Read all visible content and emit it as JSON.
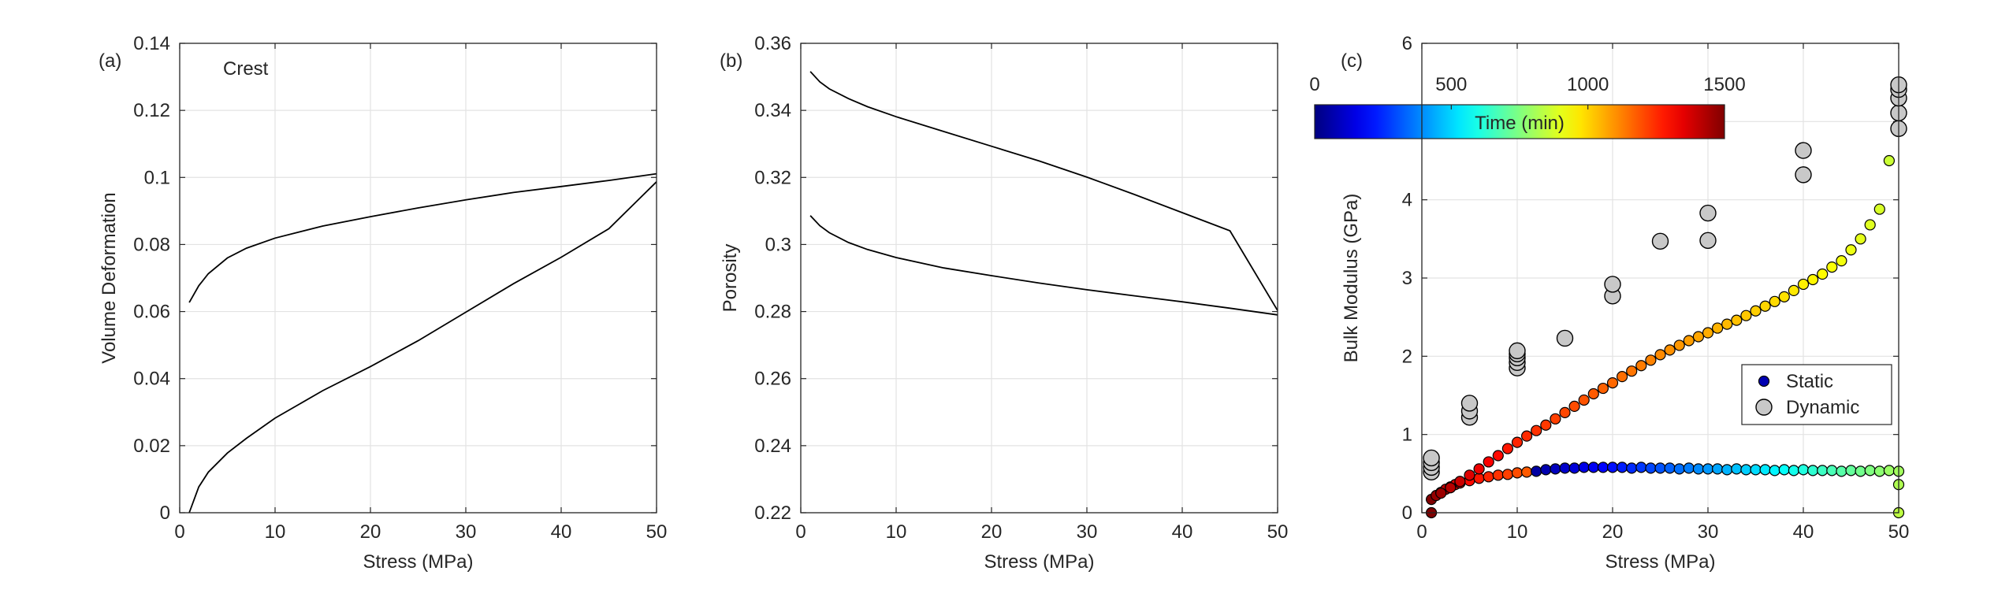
{
  "panels": {
    "a": {
      "label": "(a)",
      "annotation": "Crest"
    },
    "b": {
      "label": "(b)"
    },
    "c": {
      "label": "(c)"
    }
  },
  "colorbar": {
    "title": "Time (min)",
    "ticks": [
      "0",
      "500",
      "1000",
      "1500"
    ],
    "range": [
      0,
      1500
    ],
    "colormap": "jet"
  },
  "legend": {
    "static_label": "Static",
    "dynamic_label": "Dynamic",
    "placement": "lower-right"
  },
  "chart_data": [
    {
      "id": "a",
      "type": "line",
      "title": "",
      "xlabel": "Stress (MPa)",
      "ylabel": "Volume Deformation",
      "xlim": [
        0,
        50
      ],
      "ylim": [
        0,
        0.14
      ],
      "xticks": [
        0,
        10,
        20,
        30,
        40,
        50
      ],
      "yticks": [
        0,
        0.02,
        0.04,
        0.06,
        0.08,
        0.1,
        0.12,
        0.14
      ],
      "ytick_labels": [
        "0",
        "0.02",
        "0.04",
        "0.06",
        "0.08",
        "0.1",
        "0.12",
        "0.14"
      ],
      "grid": true,
      "series": [
        {
          "x": [
            1,
            2,
            3,
            5,
            7,
            10,
            15,
            20,
            25,
            30,
            35,
            40,
            45,
            50
          ],
          "y": [
            0,
            0.0077,
            0.0121,
            0.0178,
            0.0222,
            0.0282,
            0.0364,
            0.0436,
            0.0513,
            0.0598,
            0.0683,
            0.0762,
            0.0847,
            0.0987
          ]
        },
        {
          "x": [
            1,
            2,
            3,
            5,
            7,
            10,
            15,
            20,
            25,
            30,
            35,
            40,
            45,
            50
          ],
          "y": [
            0.0627,
            0.0677,
            0.0713,
            0.076,
            0.0789,
            0.0819,
            0.0855,
            0.0883,
            0.0909,
            0.0933,
            0.0955,
            0.0973,
            0.0991,
            0.1011
          ]
        }
      ]
    },
    {
      "id": "b",
      "type": "line",
      "title": "",
      "xlabel": "Stress (MPa)",
      "ylabel": "Porosity",
      "xlim": [
        0,
        50
      ],
      "ylim": [
        0.22,
        0.36
      ],
      "xticks": [
        0,
        10,
        20,
        30,
        40,
        50
      ],
      "yticks": [
        0.22,
        0.24,
        0.26,
        0.28,
        0.3,
        0.32,
        0.34,
        0.36
      ],
      "ytick_labels": [
        "0.22",
        "0.24",
        "0.26",
        "0.28",
        "0.3",
        "0.32",
        "0.34",
        "0.36"
      ],
      "grid": true,
      "series": [
        {
          "x": [
            1,
            2,
            3,
            5,
            7,
            10,
            15,
            20,
            25,
            30,
            35,
            40,
            45,
            50
          ],
          "y": [
            0.3516,
            0.3485,
            0.3464,
            0.3435,
            0.3411,
            0.3381,
            0.3337,
            0.3293,
            0.3249,
            0.3201,
            0.3149,
            0.3095,
            0.3041,
            0.2803
          ]
        },
        {
          "x": [
            1,
            2,
            3,
            5,
            7,
            10,
            15,
            20,
            25,
            30,
            35,
            40,
            45,
            50
          ],
          "y": [
            0.3086,
            0.3056,
            0.3035,
            0.3006,
            0.2985,
            0.2961,
            0.293,
            0.2907,
            0.2885,
            0.2865,
            0.2847,
            0.2829,
            0.281,
            0.279
          ]
        }
      ]
    },
    {
      "id": "c",
      "type": "scatter",
      "title": "",
      "xlabel": "Stress (MPa)",
      "ylabel": "Bulk Modulus (GPa)",
      "xlim": [
        0,
        50
      ],
      "ylim": [
        0,
        6
      ],
      "xticks": [
        0,
        10,
        20,
        30,
        40,
        50
      ],
      "yticks": [
        0,
        1,
        2,
        3,
        4,
        5,
        6
      ],
      "ytick_labels": [
        "0",
        "1",
        "2",
        "3",
        "4",
        "",
        "6"
      ],
      "grid": true,
      "series": [
        {
          "name": "Static",
          "color_by": "time_min",
          "x": [
            1,
            1.5,
            2,
            2.5,
            3,
            3.5,
            4,
            5,
            6,
            7,
            8,
            9,
            10,
            11,
            12,
            13,
            14,
            15,
            16,
            17,
            18,
            19,
            20,
            21,
            22,
            23,
            24,
            25,
            26,
            27,
            28,
            29,
            30,
            31,
            32,
            33,
            34,
            35,
            36,
            37,
            38,
            39,
            40,
            41,
            42,
            43,
            44,
            45,
            46,
            47,
            48,
            49,
            50,
            50,
            50
          ],
          "y": [
            0.17,
            0.22,
            0.26,
            0.3,
            0.33,
            0.36,
            0.38,
            0.41,
            0.44,
            0.46,
            0.48,
            0.49,
            0.51,
            0.52,
            0.53,
            0.55,
            0.56,
            0.57,
            0.57,
            0.58,
            0.58,
            0.58,
            0.58,
            0.58,
            0.57,
            0.58,
            0.57,
            0.57,
            0.57,
            0.56,
            0.57,
            0.56,
            0.56,
            0.56,
            0.55,
            0.56,
            0.55,
            0.55,
            0.55,
            0.54,
            0.55,
            0.54,
            0.55,
            0.54,
            0.54,
            0.54,
            0.53,
            0.54,
            0.53,
            0.54,
            0.53,
            0.54,
            0.53,
            0.36,
            0.0
          ],
          "time_min": [
            1500,
            1470,
            1440,
            1410,
            1380,
            1350,
            1330,
            1300,
            1280,
            1260,
            1240,
            1220,
            1200,
            1180,
            50,
            70,
            90,
            110,
            130,
            150,
            170,
            190,
            210,
            230,
            250,
            270,
            290,
            310,
            330,
            350,
            370,
            390,
            410,
            430,
            450,
            470,
            490,
            510,
            530,
            550,
            570,
            590,
            610,
            630,
            650,
            670,
            690,
            710,
            730,
            750,
            770,
            790,
            800,
            820,
            840
          ]
        },
        {
          "name": "",
          "color_by": "time_min",
          "x": [
            1,
            2,
            3,
            4,
            5,
            6,
            7,
            8,
            9,
            10,
            11,
            12,
            13,
            14,
            15,
            16,
            17,
            18,
            19,
            20,
            21,
            22,
            23,
            24,
            25,
            26,
            27,
            28,
            29,
            30,
            31,
            32,
            33,
            34,
            35,
            36,
            37,
            38,
            39,
            40,
            41,
            42,
            43,
            44,
            45,
            46,
            47,
            48,
            49
          ],
          "y": [
            0.0,
            0.25,
            0.32,
            0.4,
            0.48,
            0.56,
            0.65,
            0.73,
            0.82,
            0.9,
            0.98,
            1.05,
            1.12,
            1.2,
            1.28,
            1.36,
            1.44,
            1.52,
            1.59,
            1.66,
            1.74,
            1.81,
            1.88,
            1.95,
            2.02,
            2.08,
            2.14,
            2.2,
            2.25,
            2.3,
            2.36,
            2.41,
            2.46,
            2.52,
            2.58,
            2.64,
            2.7,
            2.76,
            2.84,
            2.92,
            2.98,
            3.05,
            3.14,
            3.22,
            3.36,
            3.5,
            3.68,
            3.88,
            4.5
          ],
          "time_min": [
            1500,
            1460,
            1420,
            1390,
            1360,
            1340,
            1320,
            1300,
            1280,
            1260,
            1250,
            1240,
            1230,
            1220,
            1210,
            1200,
            1190,
            1180,
            1170,
            1160,
            1150,
            1140,
            1130,
            1120,
            1110,
            1100,
            1090,
            1080,
            1070,
            1060,
            1050,
            1040,
            1030,
            1020,
            1010,
            1000,
            990,
            980,
            970,
            960,
            950,
            940,
            930,
            920,
            910,
            900,
            890,
            880,
            860
          ]
        },
        {
          "name": "Dynamic",
          "color": "#c8c8c8",
          "x": [
            1,
            1,
            1,
            1,
            5,
            5,
            5,
            10,
            10,
            10,
            10,
            10,
            15,
            20,
            20,
            25,
            30,
            30,
            40,
            40,
            50,
            50,
            50,
            50,
            50
          ],
          "y": [
            0.52,
            0.58,
            0.64,
            0.7,
            1.22,
            1.3,
            1.4,
            1.85,
            1.92,
            1.98,
            2.03,
            2.07,
            2.23,
            2.77,
            2.92,
            3.47,
            3.48,
            3.83,
            4.32,
            4.63,
            4.91,
            5.11,
            5.3,
            5.41,
            5.47
          ]
        }
      ]
    }
  ]
}
